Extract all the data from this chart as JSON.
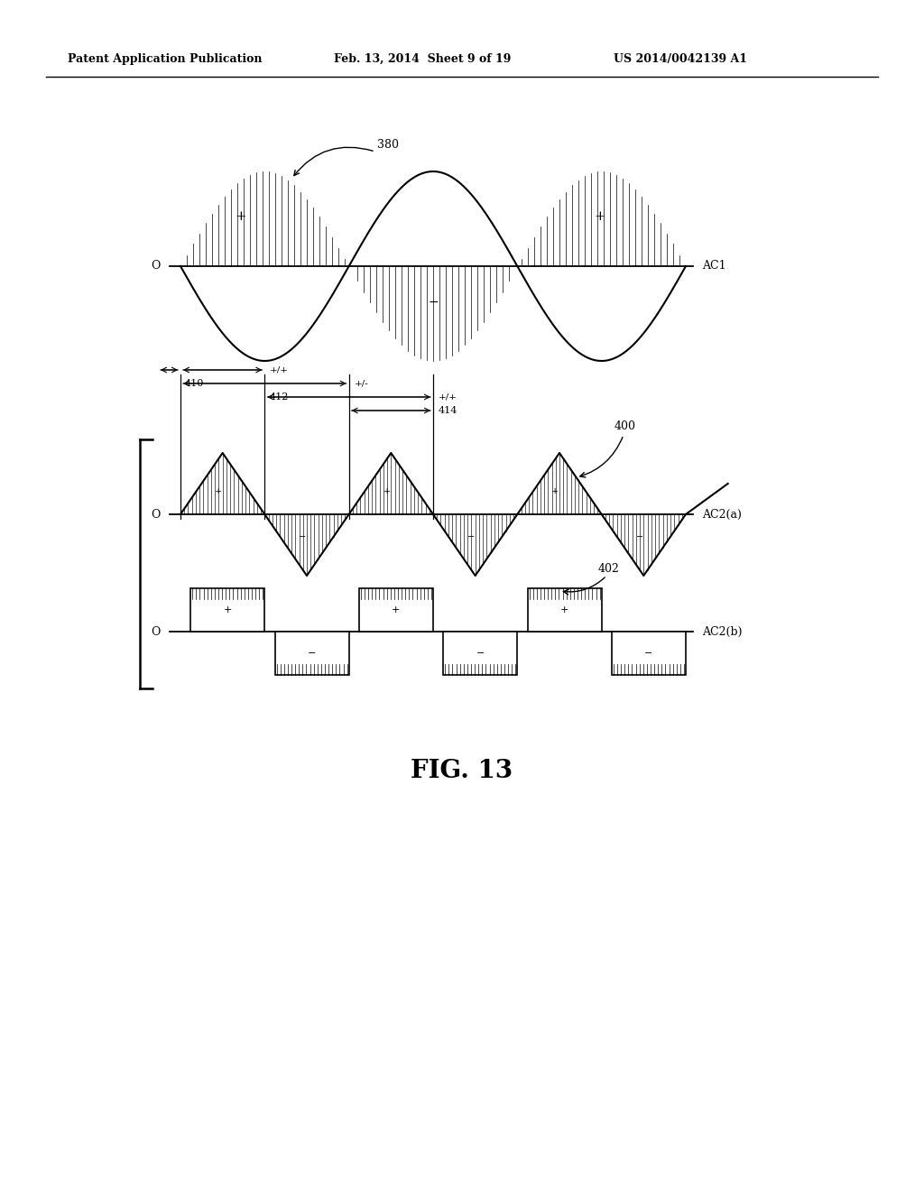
{
  "title": "FIG. 13",
  "header_left": "Patent Application Publication",
  "header_center": "Feb. 13, 2014  Sheet 9 of 19",
  "header_right": "US 2014/0042139 A1",
  "bg_color": "#ffffff",
  "fg_color": "#000000",
  "label_380": "380",
  "label_400": "400",
  "label_402": "402",
  "label_410": "410",
  "label_412": "412",
  "label_414": "414",
  "label_AC1": "AC1",
  "label_AC2a": "AC2(a)",
  "label_AC2b": "AC2(b)",
  "label_pp": "+/+",
  "label_pm": "+/-",
  "label_pp2": "+/+",
  "label_O": "O"
}
